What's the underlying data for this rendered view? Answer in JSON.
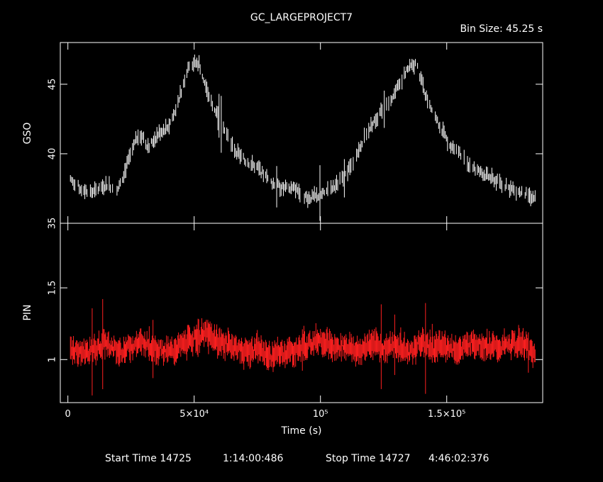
{
  "chart_data": {
    "type": "line",
    "title": "GC_LARGEPROJECT7",
    "bin_size": "Bin Size: 45.25 s",
    "xlabel": "Time (s)",
    "xlim": [
      -3000,
      188000
    ],
    "x_ticks": [
      {
        "value": 0,
        "label": "0"
      },
      {
        "value": 50000,
        "label": "5×10⁴"
      },
      {
        "value": 100000,
        "label": "10⁵"
      },
      {
        "value": 150000,
        "label": "1.5×10⁵"
      }
    ],
    "panels": [
      {
        "name": "GSO",
        "ylabel": "GSO",
        "color": "#ffffff",
        "ylim": [
          35,
          48
        ],
        "y_ticks": [
          {
            "value": 35,
            "label": "35"
          },
          {
            "value": 40,
            "label": "40"
          },
          {
            "value": 45,
            "label": "45"
          }
        ],
        "x": [
          1000,
          5000,
          10000,
          15000,
          20000,
          25000,
          28000,
          32000,
          36000,
          40000,
          44000,
          48000,
          52000,
          55000,
          60000,
          65000,
          70000,
          75000,
          80000,
          85000,
          90000,
          95000,
          100000,
          105000,
          110000,
          115000,
          118000,
          122000,
          126000,
          130000,
          134000,
          138000,
          142000,
          146000,
          150000,
          155000,
          160000,
          165000,
          170000,
          175000,
          180000,
          185000
        ],
        "y": [
          38.2,
          37.5,
          37.2,
          37.8,
          37.5,
          40.0,
          41.5,
          40.5,
          41.5,
          42.0,
          44.0,
          46.5,
          46.5,
          44.5,
          42.5,
          40.5,
          39.5,
          39.0,
          38.0,
          37.5,
          37.5,
          36.8,
          37.0,
          37.5,
          38.5,
          40.0,
          41.5,
          42.5,
          43.5,
          44.5,
          46.0,
          46.5,
          44.0,
          42.5,
          41.0,
          40.0,
          39.0,
          38.5,
          38.0,
          37.5,
          37.2,
          36.8
        ]
      },
      {
        "name": "PIN",
        "ylabel": "PIN",
        "color": "#ff2020",
        "ylim": [
          0.7,
          1.95
        ],
        "y_ticks": [
          {
            "value": 1,
            "label": "1"
          },
          {
            "value": 1.5,
            "label": "1.5"
          }
        ],
        "x": [
          1000,
          5000,
          10000,
          15000,
          20000,
          25000,
          30000,
          35000,
          40000,
          45000,
          50000,
          55000,
          60000,
          65000,
          70000,
          75000,
          80000,
          85000,
          90000,
          95000,
          100000,
          105000,
          110000,
          115000,
          120000,
          125000,
          130000,
          135000,
          140000,
          145000,
          150000,
          155000,
          160000,
          165000,
          170000,
          175000,
          180000,
          185000
        ],
        "y": [
          1.08,
          1.05,
          1.06,
          1.12,
          1.05,
          1.1,
          1.12,
          1.08,
          1.05,
          1.1,
          1.15,
          1.18,
          1.12,
          1.1,
          1.05,
          1.08,
          1.02,
          1.05,
          1.06,
          1.1,
          1.15,
          1.08,
          1.1,
          1.05,
          1.12,
          1.08,
          1.1,
          1.05,
          1.12,
          1.08,
          1.1,
          1.06,
          1.12,
          1.1,
          1.08,
          1.1,
          1.12,
          1.02
        ]
      }
    ]
  },
  "footer": {
    "start_label": "Start Time 14725",
    "start_time": "1:14:00:486",
    "stop_label": "Stop Time 14727",
    "stop_time": "4:46:02:376"
  }
}
